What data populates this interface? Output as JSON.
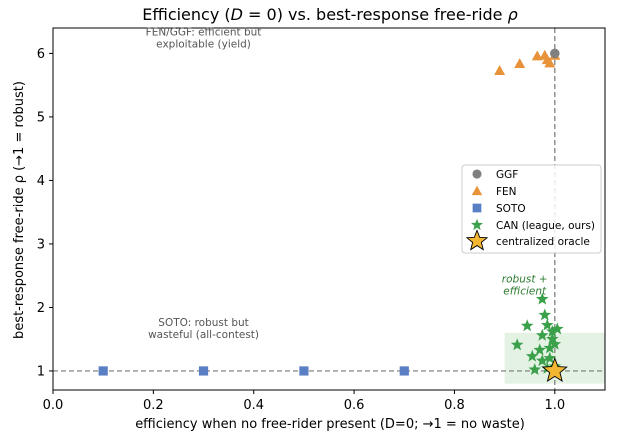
{
  "chart_data": {
    "type": "scatter",
    "title": "Efficiency (D = 0) vs. best-response free-ride ρ",
    "xlabel": "efficiency when no free-rider present  (D=0;  →1 = no waste)",
    "ylabel": "best-response free-ride  ρ  (→1 = robust)",
    "xlim": [
      0.0,
      1.1
    ],
    "ylim": [
      0.7,
      6.4
    ],
    "xticks": [
      "0.0",
      "0.2",
      "0.4",
      "0.6",
      "0.8",
      "1.0"
    ],
    "yticks": [
      "1",
      "2",
      "3",
      "4",
      "5",
      "6"
    ],
    "grid": false,
    "legend_position": "right",
    "reference_lines": {
      "x": 1.0,
      "y": 1.0
    },
    "highlight_region": {
      "x": [
        0.9,
        1.1
      ],
      "y": [
        0.8,
        1.6
      ],
      "color": "#e4f2e4"
    },
    "series": [
      {
        "name": "GGF",
        "marker": "circle",
        "color": "#808080",
        "points": [
          [
            1.0,
            6.0
          ]
        ]
      },
      {
        "name": "FEN",
        "marker": "triangle",
        "color": "#e8923a",
        "points": [
          [
            0.89,
            5.73
          ],
          [
            0.93,
            5.84
          ],
          [
            0.965,
            5.96
          ],
          [
            0.98,
            5.97
          ],
          [
            0.985,
            5.9
          ],
          [
            0.99,
            5.85
          ],
          [
            1.0,
            5.97
          ]
        ]
      },
      {
        "name": "SOTO",
        "marker": "square",
        "color": "#5b7fc4",
        "points": [
          [
            0.1,
            1.0
          ],
          [
            0.3,
            1.0
          ],
          [
            0.5,
            1.0
          ],
          [
            0.7,
            1.0
          ]
        ]
      },
      {
        "name": "CAN (league, ours)",
        "marker": "star",
        "color": "#3aa04a",
        "points": [
          [
            0.975,
            2.13
          ],
          [
            0.98,
            1.88
          ],
          [
            0.945,
            1.71
          ],
          [
            0.985,
            1.72
          ],
          [
            0.995,
            1.62
          ],
          [
            1.005,
            1.66
          ],
          [
            0.975,
            1.56
          ],
          [
            0.995,
            1.5
          ],
          [
            1.0,
            1.42
          ],
          [
            0.925,
            1.41
          ],
          [
            0.97,
            1.33
          ],
          [
            0.99,
            1.36
          ],
          [
            0.955,
            1.23
          ],
          [
            0.975,
            1.16
          ],
          [
            0.99,
            1.2
          ],
          [
            0.96,
            1.02
          ],
          [
            0.985,
            1.04
          ],
          [
            1.0,
            1.07
          ],
          [
            1.005,
            0.99
          ]
        ]
      },
      {
        "name": "centralized oracle",
        "marker": "big-star",
        "color": "#f2b632",
        "points": [
          [
            1.0,
            1.0
          ]
        ]
      }
    ],
    "annotations": [
      {
        "text": "FEN/GGF: efficient but",
        "x": 0.3,
        "y": 6.28
      },
      {
        "text": "exploitable (yield)",
        "x": 0.3,
        "y": 6.09
      },
      {
        "text": "SOTO: robust but",
        "x": 0.3,
        "y": 1.71
      },
      {
        "text": "wasteful (all-contest)",
        "x": 0.3,
        "y": 1.52
      },
      {
        "text": "robust +",
        "x": 0.94,
        "y": 2.39,
        "style": "green"
      },
      {
        "text": "efficient",
        "x": 0.94,
        "y": 2.2,
        "style": "green"
      }
    ]
  }
}
